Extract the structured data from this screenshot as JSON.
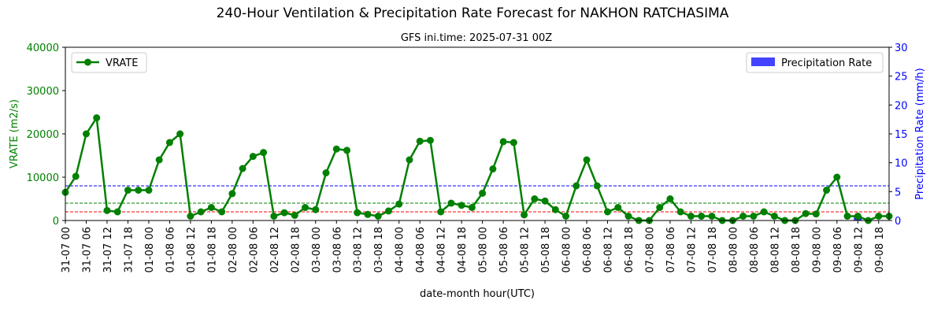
{
  "chart_data": {
    "type": "line",
    "title": "240-Hour Ventilation & Precipitation Rate Forecast for NAKHON RATCHASIMA",
    "subtitle": "GFS ini.time: 2025-07-31 00Z",
    "xlabel": "date-month hour(UTC)",
    "ylabel_left": "VRATE (m2/s)",
    "ylabel_right": "Precipitation Rate (mm/h)",
    "ylim_left": [
      0,
      40000
    ],
    "ylim_right": [
      0,
      30
    ],
    "yticks_left": [
      "0",
      "10000",
      "20000",
      "30000",
      "40000"
    ],
    "yticks_right": [
      "0",
      "5",
      "10",
      "15",
      "20",
      "25",
      "30"
    ],
    "x_ticks": [
      "31-07 00",
      "31-07 06",
      "31-07 12",
      "31-07 18",
      "01-08 00",
      "01-08 06",
      "01-08 12",
      "01-08 18",
      "02-08 00",
      "02-08 06",
      "02-08 12",
      "02-08 18",
      "03-08 00",
      "03-08 06",
      "03-08 12",
      "03-08 18",
      "04-08 00",
      "04-08 06",
      "04-08 12",
      "04-08 18",
      "05-08 00",
      "05-08 06",
      "05-08 12",
      "05-08 18",
      "06-08 00",
      "06-08 06",
      "06-08 12",
      "06-08 18",
      "07-08 00",
      "07-08 06",
      "07-08 12",
      "07-08 18",
      "08-08 00",
      "08-08 06",
      "08-08 12",
      "08-08 18",
      "09-08 00",
      "09-08 06",
      "09-08 12",
      "09-08 18"
    ],
    "x_step_hours": 3,
    "series": [
      {
        "name": "VRATE",
        "axis": "left",
        "color": "#008000",
        "values": [
          6500,
          10200,
          20000,
          23700,
          2300,
          2000,
          7000,
          7000,
          7000,
          14000,
          18000,
          20000,
          1000,
          2000,
          3000,
          2000,
          6200,
          12000,
          14800,
          15700,
          1000,
          1800,
          1200,
          3000,
          2500,
          11000,
          16500,
          16200,
          1800,
          1400,
          1000,
          2200,
          3800,
          14000,
          18300,
          18500,
          2000,
          4000,
          3500,
          3000,
          6300,
          11900,
          18200,
          18000,
          1300,
          5000,
          4500,
          2500,
          1000,
          8000,
          14000,
          8000,
          2000,
          3000,
          1000,
          0,
          0,
          3000,
          5000,
          2000,
          1000,
          1000,
          1000,
          0,
          0,
          1000,
          1000,
          2000,
          1000,
          0,
          0,
          1600,
          1500,
          7000,
          10000,
          1000,
          1000,
          0,
          1000,
          1000
        ]
      },
      {
        "name": "Precipitation Rate",
        "axis": "right",
        "color": "#0000ff",
        "type": "bar",
        "x_index": [
          76
        ],
        "values": [
          0.8
        ]
      }
    ],
    "reference_lines": [
      {
        "axis": "right",
        "value": 6,
        "color": "#0000ff"
      },
      {
        "axis": "left",
        "value": 4000,
        "color": "#008000"
      },
      {
        "axis": "left",
        "value": 2000,
        "color": "#ff0000"
      }
    ],
    "legend_left": "upper-left",
    "legend_right": "upper-right",
    "grid": false
  }
}
